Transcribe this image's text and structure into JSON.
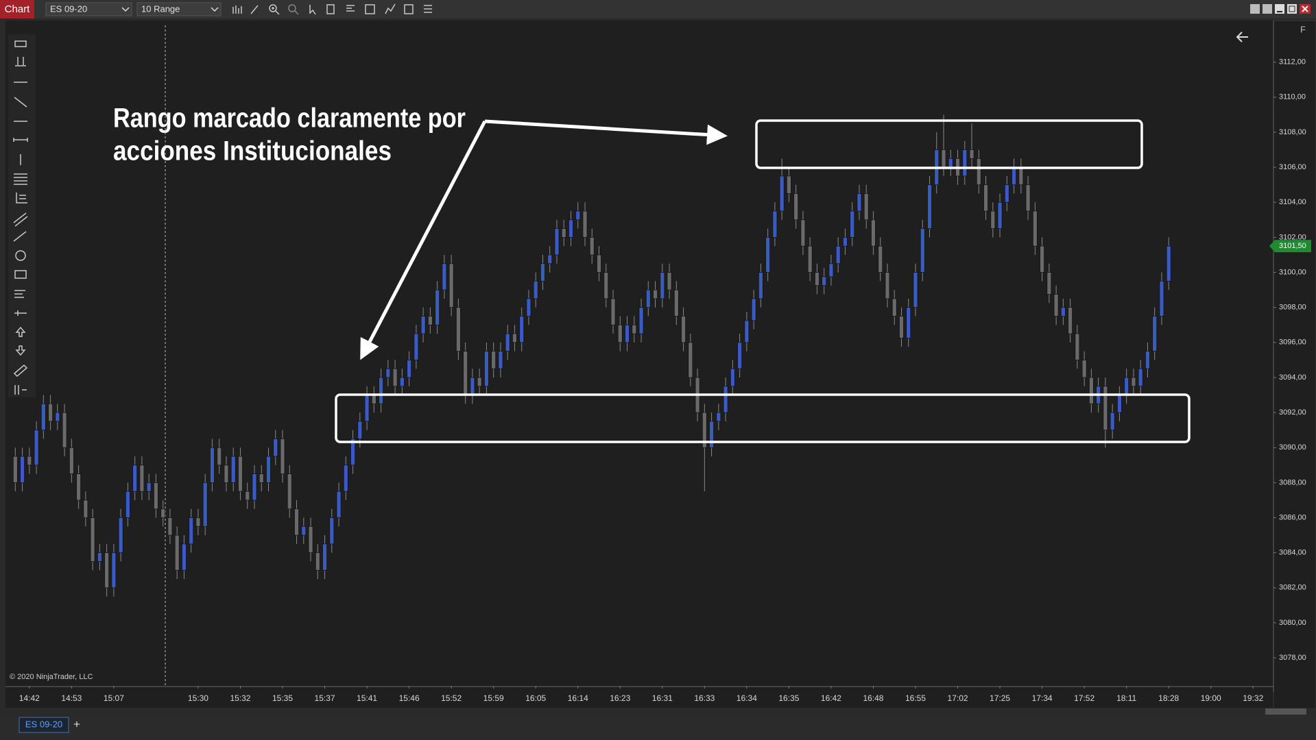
{
  "ui": {
    "tab": "Chart",
    "instrument": "ES 09-20",
    "period": "10 Range",
    "copyright": "© 2020 NinjaTrader, LLC",
    "bottom_tab": "ES 09-20",
    "add_tab": "+",
    "f_button": "F"
  },
  "chart_data": {
    "type": "candlestick",
    "annotations": [
      "Rango marcado claramente por",
      "acciones Institucionales"
    ],
    "up_color": "#3b5bc4",
    "down_color": "#6a6a6a",
    "grid": false,
    "xlim": [
      -1.2,
      178.9
    ],
    "xticks": [
      {
        "value": 2,
        "label": "14:42"
      },
      {
        "value": 8,
        "label": "14:53"
      },
      {
        "value": 14,
        "label": "15:07"
      },
      {
        "value": 26,
        "label": "15:30"
      },
      {
        "value": 32,
        "label": "15:32"
      },
      {
        "value": 38,
        "label": "15:35"
      },
      {
        "value": 44,
        "label": "15:37"
      },
      {
        "value": 50,
        "label": "15:41"
      },
      {
        "value": 56,
        "label": "15:46"
      },
      {
        "value": 62,
        "label": "15:52"
      },
      {
        "value": 68,
        "label": "15:59"
      },
      {
        "value": 74,
        "label": "16:05"
      },
      {
        "value": 80,
        "label": "16:14"
      },
      {
        "value": 86,
        "label": "16:23"
      },
      {
        "value": 92,
        "label": "16:31"
      },
      {
        "value": 98,
        "label": "16:33"
      },
      {
        "value": 104,
        "label": "16:34"
      },
      {
        "value": 110,
        "label": "16:35"
      },
      {
        "value": 116,
        "label": "16:42"
      },
      {
        "value": 122,
        "label": "16:48"
      },
      {
        "value": 128,
        "label": "16:55"
      },
      {
        "value": 134,
        "label": "17:02"
      },
      {
        "value": 140,
        "label": "17:25"
      },
      {
        "value": 146,
        "label": "17:34"
      },
      {
        "value": 152,
        "label": "17:52"
      },
      {
        "value": 158,
        "label": "18:11"
      },
      {
        "value": 164,
        "label": "18:28"
      },
      {
        "value": 170,
        "label": "19:00"
      },
      {
        "value": 176,
        "label": "19:32"
      }
    ],
    "ylim": [
      3076.4,
      3114.1
    ],
    "yticks": [
      {
        "value": 3078,
        "label": "3078,00"
      },
      {
        "value": 3080,
        "label": "3080,00"
      },
      {
        "value": 3082,
        "label": "3082,00"
      },
      {
        "value": 3084,
        "label": "3084,00"
      },
      {
        "value": 3086,
        "label": "3086,00"
      },
      {
        "value": 3088,
        "label": "3088,00"
      },
      {
        "value": 3090,
        "label": "3090,00"
      },
      {
        "value": 3092,
        "label": "3092,00"
      },
      {
        "value": 3094,
        "label": "3094,00"
      },
      {
        "value": 3096,
        "label": "3096,00"
      },
      {
        "value": 3098,
        "label": "3098,00"
      },
      {
        "value": 3100,
        "label": "3100,00"
      },
      {
        "value": 3102,
        "label": "3102,00"
      },
      {
        "value": 3104,
        "label": "3104,00"
      },
      {
        "value": 3106,
        "label": "3106,00"
      },
      {
        "value": 3108,
        "label": "3108,00"
      },
      {
        "value": 3110,
        "label": "3110,00"
      },
      {
        "value": 3112,
        "label": "3112,00"
      }
    ],
    "last_price": {
      "value": 3101.5,
      "label": "3101,50"
    },
    "values": [
      [
        3089.5,
        3090,
        3087.5,
        3088
      ],
      [
        3088,
        3090,
        3087.5,
        3089.5
      ],
      [
        3089.5,
        3090,
        3088.5,
        3089
      ],
      [
        3089,
        3091.5,
        3088.5,
        3091
      ],
      [
        3091,
        3093,
        3090.5,
        3092.5
      ],
      [
        3092.5,
        3093,
        3091,
        3091.5
      ],
      [
        3091.5,
        3092.5,
        3091,
        3092
      ],
      [
        3092,
        3092.5,
        3089.5,
        3090
      ],
      [
        3090,
        3090.5,
        3088,
        3088.5
      ],
      [
        3088.5,
        3089,
        3086.5,
        3087
      ],
      [
        3087,
        3087.5,
        3085.5,
        3086
      ],
      [
        3086,
        3086.5,
        3083,
        3083.5
      ],
      [
        3083.5,
        3084.5,
        3083,
        3084
      ],
      [
        3084,
        3084.5,
        3081.5,
        3082
      ],
      [
        3082,
        3084.5,
        3081.5,
        3084
      ],
      [
        3084,
        3086.5,
        3083.5,
        3086
      ],
      [
        3086,
        3088,
        3085.5,
        3087.5
      ],
      [
        3087.5,
        3089.5,
        3087,
        3089
      ],
      [
        3089,
        3089.5,
        3087,
        3087.5
      ],
      [
        3087.5,
        3088.5,
        3087,
        3088
      ],
      [
        3088,
        3088.5,
        3086,
        3086.5
      ],
      [
        3086.5,
        3087,
        3085.5,
        3086
      ],
      [
        3086,
        3086.5,
        3084.5,
        3085
      ],
      [
        3085,
        3085.5,
        3082.5,
        3083
      ],
      [
        3083,
        3085,
        3082.5,
        3084.5
      ],
      [
        3084.5,
        3086.5,
        3084,
        3086
      ],
      [
        3086,
        3086.5,
        3085,
        3085.5
      ],
      [
        3085.5,
        3088.5,
        3085,
        3088
      ],
      [
        3088,
        3090.5,
        3087.5,
        3090
      ],
      [
        3090,
        3090.5,
        3088.5,
        3089
      ],
      [
        3089,
        3089.5,
        3087.5,
        3088
      ],
      [
        3088,
        3090,
        3087.5,
        3089.5
      ],
      [
        3089.5,
        3090,
        3087,
        3087.5
      ],
      [
        3087.5,
        3088,
        3086.5,
        3087
      ],
      [
        3087,
        3089,
        3086.5,
        3088.5
      ],
      [
        3088.5,
        3089,
        3087.5,
        3088
      ],
      [
        3088,
        3090,
        3087.5,
        3089.5
      ],
      [
        3089.5,
        3091,
        3089,
        3090.5
      ],
      [
        3090.5,
        3091,
        3088,
        3088.5
      ],
      [
        3088.5,
        3089,
        3086,
        3086.5
      ],
      [
        3086.5,
        3087,
        3084.5,
        3085
      ],
      [
        3085,
        3086,
        3084.5,
        3085.5
      ],
      [
        3085.5,
        3086,
        3083.5,
        3084
      ],
      [
        3084,
        3084.5,
        3082.5,
        3083
      ],
      [
        3083,
        3085,
        3082.5,
        3084.5
      ],
      [
        3084.5,
        3086.5,
        3084,
        3086
      ],
      [
        3086,
        3088,
        3085.5,
        3087.5
      ],
      [
        3087.5,
        3089.5,
        3087,
        3089
      ],
      [
        3089,
        3091,
        3088.5,
        3090.5
      ],
      [
        3090.5,
        3092,
        3090,
        3091.5
      ],
      [
        3091.5,
        3093.5,
        3091,
        3093
      ],
      [
        3093,
        3093.5,
        3092,
        3092.5
      ],
      [
        3092.5,
        3094.5,
        3092,
        3094
      ],
      [
        3094,
        3095,
        3093.5,
        3094.5
      ],
      [
        3094.5,
        3095,
        3093,
        3093.5
      ],
      [
        3093.5,
        3094.5,
        3093,
        3094
      ],
      [
        3094,
        3095.5,
        3093.5,
        3095
      ],
      [
        3095,
        3097,
        3094.5,
        3096.5
      ],
      [
        3096.5,
        3098,
        3096,
        3097.5
      ],
      [
        3097.5,
        3098,
        3096.5,
        3097
      ],
      [
        3097,
        3099.5,
        3096.5,
        3099
      ],
      [
        3099,
        3101,
        3098.5,
        3100.5
      ],
      [
        3100.5,
        3101,
        3097.5,
        3098
      ],
      [
        3098,
        3098.5,
        3095,
        3095.5
      ],
      [
        3095.5,
        3096,
        3092.5,
        3093
      ],
      [
        3093,
        3094.5,
        3092.5,
        3094
      ],
      [
        3094,
        3094.5,
        3093,
        3093.5
      ],
      [
        3093.5,
        3096,
        3093,
        3095.5
      ],
      [
        3095.5,
        3096,
        3094,
        3094.5
      ],
      [
        3094.5,
        3096,
        3094,
        3095.5
      ],
      [
        3095.5,
        3097,
        3095,
        3096.5
      ],
      [
        3096.5,
        3097,
        3095.5,
        3096
      ],
      [
        3096,
        3098,
        3095.5,
        3097.5
      ],
      [
        3097.5,
        3099,
        3097,
        3098.5
      ],
      [
        3098.5,
        3100,
        3098,
        3099.5
      ],
      [
        3099.5,
        3101,
        3099,
        3100.5
      ],
      [
        3100.5,
        3101.5,
        3100,
        3101
      ],
      [
        3101,
        3103,
        3100.5,
        3102.5
      ],
      [
        3102.5,
        3103,
        3101.5,
        3102
      ],
      [
        3102,
        3103.5,
        3101.5,
        3103
      ],
      [
        3103,
        3104,
        3102.5,
        3103.5
      ],
      [
        3103.5,
        3104,
        3101.5,
        3102
      ],
      [
        3102,
        3102.5,
        3100.5,
        3101
      ],
      [
        3101,
        3101.5,
        3099.5,
        3100
      ],
      [
        3100,
        3100.5,
        3098,
        3098.5
      ],
      [
        3098.5,
        3099,
        3096.5,
        3097
      ],
      [
        3097,
        3097.5,
        3095.5,
        3096
      ],
      [
        3096,
        3097.5,
        3095.5,
        3097
      ],
      [
        3097,
        3097.5,
        3096,
        3096.5
      ],
      [
        3096.5,
        3098.5,
        3096,
        3098
      ],
      [
        3098,
        3099.5,
        3097.5,
        3099
      ],
      [
        3099,
        3099.5,
        3098,
        3098.5
      ],
      [
        3098.5,
        3100.5,
        3098,
        3100
      ],
      [
        3100,
        3100.5,
        3098.5,
        3099
      ],
      [
        3099,
        3099.5,
        3097,
        3097.5
      ],
      [
        3097.5,
        3098,
        3095.5,
        3096
      ],
      [
        3096,
        3096.5,
        3093.5,
        3094
      ],
      [
        3094,
        3094.5,
        3091.5,
        3092
      ],
      [
        3092,
        3092.5,
        3087.5,
        3090
      ],
      [
        3090,
        3092,
        3089.5,
        3091.5
      ],
      [
        3091.5,
        3092.5,
        3091,
        3092
      ],
      [
        3092,
        3094,
        3091.5,
        3093.5
      ],
      [
        3093.5,
        3095,
        3093,
        3094.5
      ],
      [
        3094.5,
        3096.5,
        3094,
        3096
      ],
      [
        3096,
        3097.75,
        3095.5,
        3097.25
      ],
      [
        3097.25,
        3099,
        3096.75,
        3098.5
      ],
      [
        3098.5,
        3100.5,
        3098,
        3100
      ],
      [
        3100,
        3102.5,
        3099.5,
        3102
      ],
      [
        3102,
        3104,
        3101.5,
        3103.5
      ],
      [
        3103.5,
        3106.5,
        3103,
        3105.5
      ],
      [
        3105.5,
        3106,
        3104,
        3104.5
      ],
      [
        3104.5,
        3105,
        3102.5,
        3103
      ],
      [
        3103,
        3103.5,
        3101,
        3101.5
      ],
      [
        3101.5,
        3102,
        3099.5,
        3100
      ],
      [
        3100,
        3100.5,
        3098.75,
        3099.25
      ],
      [
        3099.25,
        3100.25,
        3098.75,
        3099.75
      ],
      [
        3099.75,
        3101,
        3099.25,
        3100.5
      ],
      [
        3100.5,
        3102,
        3100,
        3101.5
      ],
      [
        3101.5,
        3102.5,
        3101,
        3102
      ],
      [
        3102,
        3104,
        3101.5,
        3103.5
      ],
      [
        3103.5,
        3105,
        3103,
        3104.5
      ],
      [
        3104.5,
        3105,
        3102.5,
        3103
      ],
      [
        3103,
        3103.5,
        3101,
        3101.5
      ],
      [
        3101.5,
        3102,
        3099.5,
        3100
      ],
      [
        3100,
        3100.5,
        3098,
        3098.5
      ],
      [
        3098.5,
        3099,
        3097,
        3097.5
      ],
      [
        3097.5,
        3098,
        3095.75,
        3096.25
      ],
      [
        3096.25,
        3098.5,
        3095.75,
        3098
      ],
      [
        3098,
        3100.5,
        3097.5,
        3100
      ],
      [
        3100,
        3103,
        3099.5,
        3102.5
      ],
      [
        3102.5,
        3105.5,
        3102,
        3105
      ],
      [
        3105,
        3108,
        3104.5,
        3107
      ],
      [
        3107,
        3109,
        3105.5,
        3106
      ],
      [
        3106,
        3107,
        3105.5,
        3106.5
      ],
      [
        3106.5,
        3107,
        3105,
        3105.5
      ],
      [
        3105.5,
        3107.5,
        3105,
        3107
      ],
      [
        3107,
        3108.5,
        3106,
        3106.5
      ],
      [
        3106.5,
        3107,
        3104.5,
        3105
      ],
      [
        3105,
        3105.5,
        3103,
        3103.5
      ],
      [
        3103.5,
        3104,
        3102,
        3102.5
      ],
      [
        3102.5,
        3104.5,
        3102,
        3104
      ],
      [
        3104,
        3105.5,
        3103.5,
        3105
      ],
      [
        3105,
        3106.5,
        3104.5,
        3106
      ],
      [
        3106,
        3106.5,
        3104.5,
        3105
      ],
      [
        3105,
        3105.5,
        3103,
        3103.5
      ],
      [
        3103.5,
        3104,
        3101,
        3101.5
      ],
      [
        3101.5,
        3102,
        3099.5,
        3100
      ],
      [
        3100,
        3100.5,
        3098.25,
        3098.75
      ],
      [
        3098.75,
        3099.25,
        3097,
        3097.5
      ],
      [
        3097.5,
        3098.5,
        3097,
        3098
      ],
      [
        3098,
        3098.5,
        3096,
        3096.5
      ],
      [
        3096.5,
        3097,
        3094.5,
        3095
      ],
      [
        3095,
        3095.5,
        3093.5,
        3094
      ],
      [
        3094,
        3094.5,
        3092,
        3092.5
      ],
      [
        3092.5,
        3094,
        3092,
        3093.5
      ],
      [
        3093.5,
        3094,
        3090,
        3091
      ],
      [
        3091,
        3092.5,
        3090.5,
        3092
      ],
      [
        3092,
        3093.5,
        3091.5,
        3093
      ],
      [
        3093,
        3094.5,
        3092.5,
        3094
      ],
      [
        3094,
        3094.5,
        3093,
        3093.5
      ],
      [
        3093.5,
        3095,
        3093,
        3094.5
      ],
      [
        3094.5,
        3096,
        3094,
        3095.5
      ],
      [
        3095.5,
        3098,
        3095,
        3097.5
      ],
      [
        3097.5,
        3100,
        3097,
        3099.5
      ],
      [
        3099.5,
        3102,
        3099,
        3101.5
      ]
    ]
  }
}
